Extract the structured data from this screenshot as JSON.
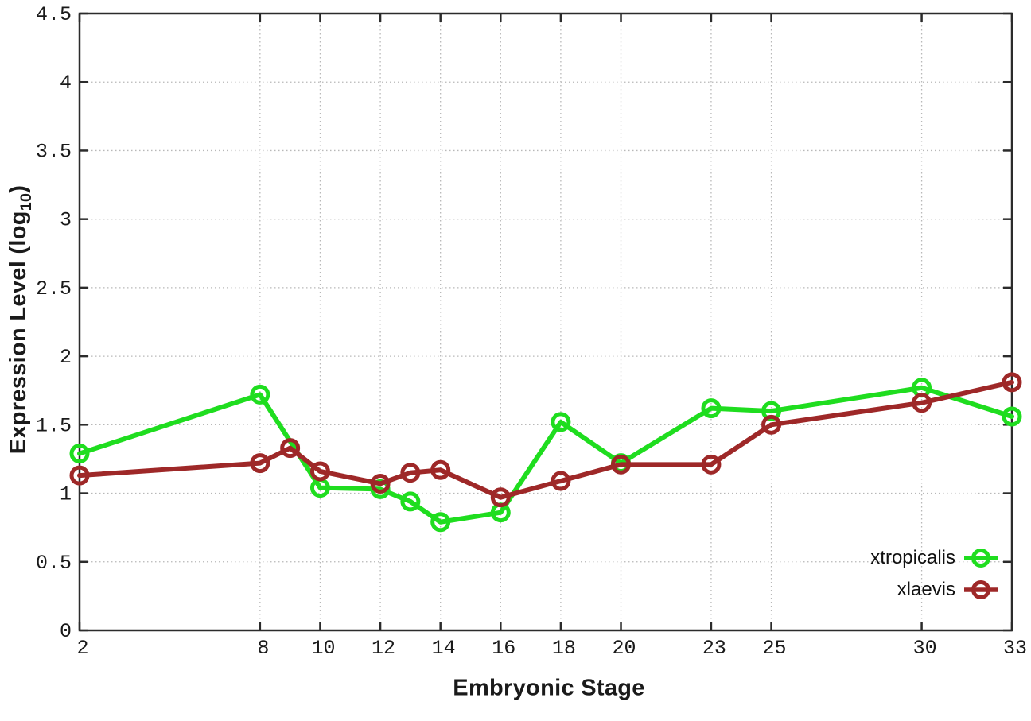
{
  "figure": {
    "background": "#ffffff",
    "border_color": "#2b2b2b",
    "grid_color": "#b8b8b8",
    "text_color": "#1a1a1a"
  },
  "chart_data": {
    "type": "line",
    "title": "",
    "xlabel": "Embryonic Stage",
    "ylabel": "Expression Level (log10)",
    "ylabel_parts": {
      "main": "Expression Level (log",
      "sub": "10",
      "close": ")"
    },
    "xlim": [
      2,
      33
    ],
    "ylim": [
      0,
      4.5
    ],
    "grid": true,
    "grid_style": "dotted",
    "legend_position": "inside-bottom-right",
    "x_ticks": [
      2,
      8,
      10,
      12,
      14,
      16,
      18,
      20,
      23,
      25,
      30,
      33
    ],
    "x_tick_labels": [
      "2",
      "8",
      "10",
      "12",
      "14",
      "16",
      "18",
      "20",
      "23",
      "25",
      "30",
      "33"
    ],
    "y_ticks": [
      0,
      0.5,
      1,
      1.5,
      2,
      2.5,
      3,
      3.5,
      4,
      4.5
    ],
    "y_tick_labels": [
      "0",
      "0.5",
      "1",
      "1.5",
      "2",
      "2.5",
      "3",
      "3.5",
      "4",
      "4.5"
    ],
    "series": [
      {
        "name": "xtropicalis",
        "color": "#1fdd1f",
        "marker": "open-circle",
        "x": [
          2,
          8,
          10,
          12,
          13,
          14,
          16,
          18,
          20,
          23,
          25,
          30,
          33
        ],
        "y": [
          1.29,
          1.72,
          1.04,
          1.03,
          0.94,
          0.79,
          0.86,
          1.52,
          1.22,
          1.62,
          1.6,
          1.77,
          1.56
        ]
      },
      {
        "name": "xlaevis",
        "color": "#9e2828",
        "marker": "open-circle",
        "x": [
          2,
          8,
          9,
          10,
          12,
          13,
          14,
          16,
          18,
          20,
          23,
          25,
          30,
          33
        ],
        "y": [
          1.13,
          1.22,
          1.33,
          1.16,
          1.07,
          1.15,
          1.17,
          0.97,
          1.09,
          1.21,
          1.21,
          1.5,
          1.66,
          1.81
        ]
      }
    ]
  }
}
